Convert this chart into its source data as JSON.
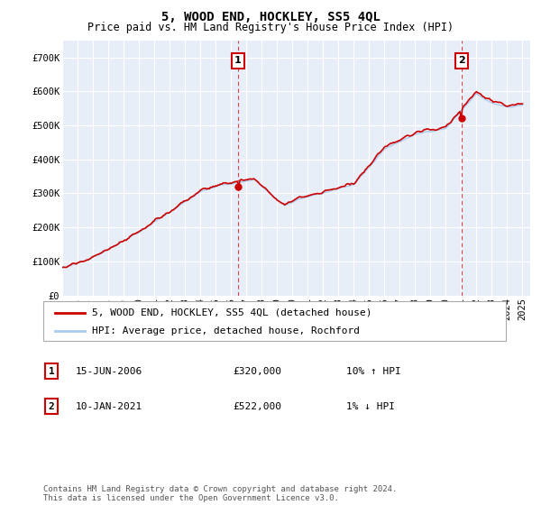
{
  "title": "5, WOOD END, HOCKLEY, SS5 4QL",
  "subtitle": "Price paid vs. HM Land Registry's House Price Index (HPI)",
  "ylim": [
    0,
    750000
  ],
  "yticks": [
    0,
    100000,
    200000,
    300000,
    400000,
    500000,
    600000,
    700000
  ],
  "ytick_labels": [
    "£0",
    "£100K",
    "£200K",
    "£300K",
    "£400K",
    "£500K",
    "£600K",
    "£700K"
  ],
  "background_color": "#ffffff",
  "plot_bg_color": "#e8eef8",
  "grid_color": "#ffffff",
  "line1_color": "#cc0000",
  "line2_color": "#aaccee",
  "marker1_color": "#cc0000",
  "sale1_x": 2006.46,
  "sale1_y": 320000,
  "sale2_x": 2021.03,
  "sale2_y": 522000,
  "vline_color": "#cc3333",
  "legend_line1": "5, WOOD END, HOCKLEY, SS5 4QL (detached house)",
  "legend_line2": "HPI: Average price, detached house, Rochford",
  "table_rows": [
    {
      "num": "1",
      "date": "15-JUN-2006",
      "price": "£320,000",
      "hpi": "10% ↑ HPI"
    },
    {
      "num": "2",
      "date": "10-JAN-2021",
      "price": "£522,000",
      "hpi": "1% ↓ HPI"
    }
  ],
  "footer": "Contains HM Land Registry data © Crown copyright and database right 2024.\nThis data is licensed under the Open Government Licence v3.0.",
  "title_fontsize": 10,
  "subtitle_fontsize": 8.5,
  "tick_fontsize": 7.5,
  "xmin": 1995.0,
  "xmax": 2025.5
}
